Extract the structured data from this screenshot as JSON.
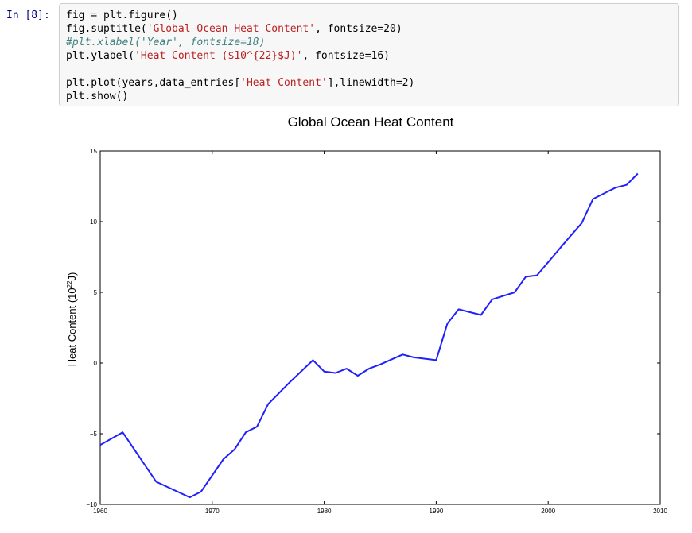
{
  "cell": {
    "prompt": "In [8]:",
    "code_lines": [
      [
        {
          "t": "fig = plt.figure()",
          "c": ""
        }
      ],
      [
        {
          "t": "fig.suptitle(",
          "c": ""
        },
        {
          "t": "'Global Ocean Heat Content'",
          "c": "str"
        },
        {
          "t": ", fontsize=20)",
          "c": ""
        }
      ],
      [
        {
          "t": "#plt.xlabel('Year', fontsize=18)",
          "c": "cmt"
        }
      ],
      [
        {
          "t": "plt.ylabel(",
          "c": ""
        },
        {
          "t": "'Heat Content ($10^{22}$J)'",
          "c": "str"
        },
        {
          "t": ", fontsize=16)",
          "c": ""
        }
      ],
      [
        {
          "t": "",
          "c": ""
        }
      ],
      [
        {
          "t": "plt.plot(years,data_entries[",
          "c": ""
        },
        {
          "t": "'Heat Content'",
          "c": "str"
        },
        {
          "t": "],linewidth=2)",
          "c": ""
        }
      ],
      [
        {
          "t": "plt.show()",
          "c": ""
        }
      ]
    ]
  },
  "chart_data": {
    "type": "line",
    "title": "Global Ocean Heat Content",
    "ylabel_text": "Heat Content (10",
    "ylabel_sup": "22",
    "ylabel_end": "J)",
    "xlim": [
      1960,
      2010
    ],
    "ylim": [
      -10,
      15
    ],
    "xticks": [
      1960,
      1970,
      1980,
      1990,
      2000,
      2010
    ],
    "yticks": [
      -10,
      -5,
      0,
      5,
      10,
      15
    ],
    "line_color": "#2020ff",
    "series": [
      {
        "x": [
          1960,
          1962,
          1965,
          1968,
          1969,
          1971,
          1972,
          1973,
          1974,
          1975,
          1977,
          1979,
          1980,
          1981,
          1982,
          1983,
          1984,
          1985,
          1987,
          1988,
          1990,
          1991,
          1992,
          1994,
          1995,
          1997,
          1998,
          1999,
          2002,
          2003,
          2004,
          2006,
          2007,
          2008
        ],
        "y": [
          -5.8,
          -4.9,
          -8.4,
          -9.5,
          -9.1,
          -6.8,
          -6.1,
          -4.9,
          -4.5,
          -2.9,
          -1.3,
          0.2,
          -0.6,
          -0.7,
          -0.4,
          -0.9,
          -0.4,
          -0.1,
          0.6,
          0.4,
          0.2,
          2.8,
          3.8,
          3.4,
          4.5,
          5.0,
          6.1,
          6.2,
          9.0,
          9.9,
          11.6,
          12.4,
          12.6,
          13.4
        ]
      }
    ]
  }
}
